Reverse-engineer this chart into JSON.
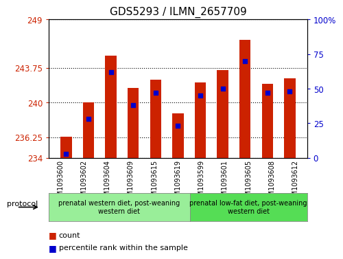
{
  "title": "GDS5293 / ILMN_2657709",
  "samples": [
    "GSM1093600",
    "GSM1093602",
    "GSM1093604",
    "GSM1093609",
    "GSM1093615",
    "GSM1093619",
    "GSM1093599",
    "GSM1093601",
    "GSM1093605",
    "GSM1093608",
    "GSM1093612"
  ],
  "bar_values": [
    236.3,
    240.0,
    245.1,
    241.6,
    242.5,
    238.8,
    242.2,
    243.5,
    246.8,
    242.0,
    242.6
  ],
  "percentile_values": [
    3,
    28,
    62,
    38,
    47,
    23,
    45,
    50,
    70,
    47,
    48
  ],
  "ylim_left": [
    234,
    249
  ],
  "ylim_right": [
    0,
    100
  ],
  "yticks_left": [
    234,
    236.25,
    240,
    243.75,
    249
  ],
  "yticks_right": [
    0,
    25,
    50,
    75,
    100
  ],
  "bar_color": "#cc2200",
  "dot_color": "#0000cc",
  "bar_bottom": 234,
  "group1_label": "prenatal western diet, post-weaning\nwestern diet",
  "group2_label": "prenatal low-fat diet, post-weaning\nwestern diet",
  "group1_n": 6,
  "group2_n": 5,
  "group1_color": "#99ee99",
  "group2_color": "#55dd55",
  "protocol_label": "protocol",
  "legend_count_label": "count",
  "legend_percentile_label": "percentile rank within the sample",
  "tick_bg_color": "#cccccc",
  "title_fontsize": 11,
  "tick_fontsize": 8.5,
  "bar_width": 0.5
}
